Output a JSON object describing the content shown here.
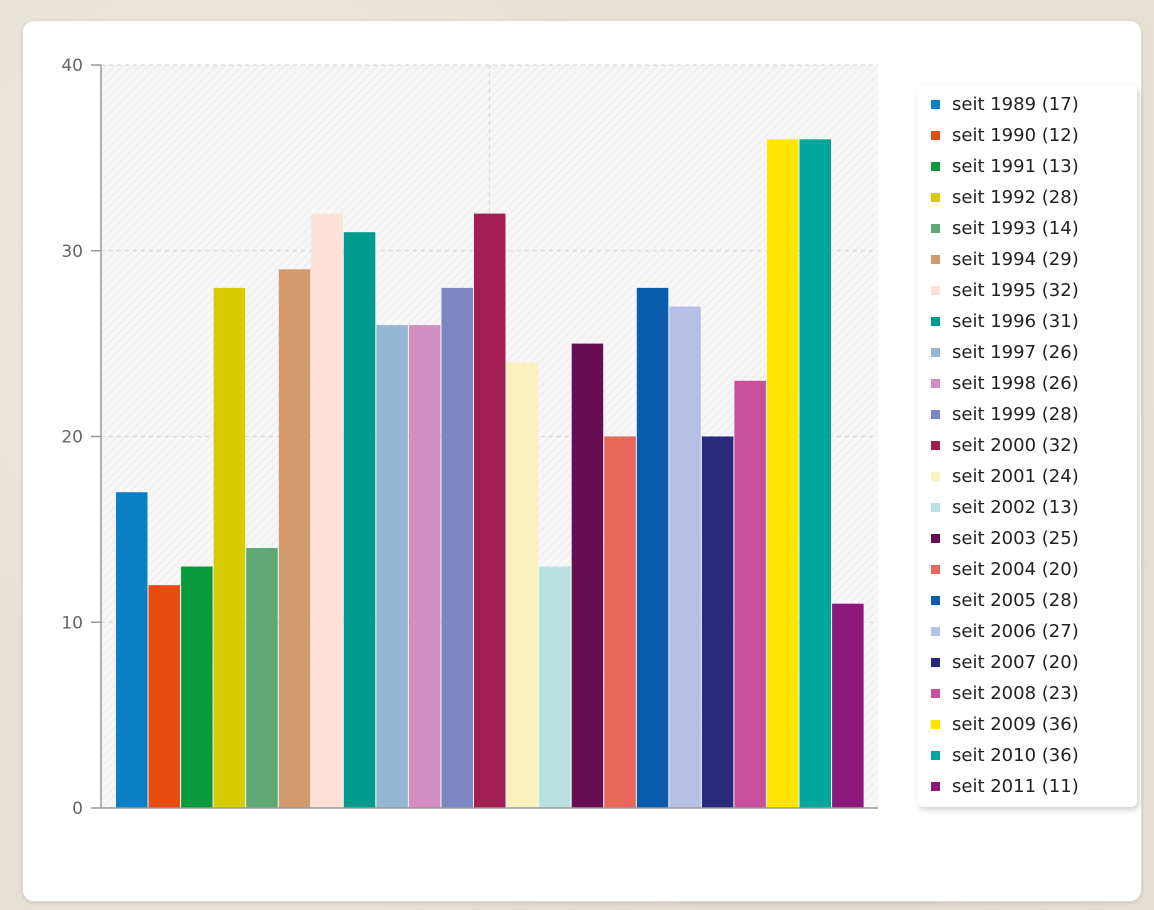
{
  "chart_data": {
    "type": "bar",
    "title": "",
    "xlabel": "",
    "ylabel": "",
    "ylim": [
      0,
      40
    ],
    "yticks": [
      0,
      10,
      20,
      30,
      40
    ],
    "grid": true,
    "legend_position": "right",
    "categories": [
      "seit 1989 (17)",
      "seit 1990 (12)",
      "seit 1991 (13)",
      "seit 1992 (28)",
      "seit 1993 (14)",
      "seit 1994 (29)",
      "seit 1995 (32)",
      "seit 1996 (31)",
      "seit 1997 (26)",
      "seit 1998 (26)",
      "seit 1999 (28)",
      "seit 2000 (32)",
      "seit 2001 (24)",
      "seit 2002 (13)",
      "seit 2003 (25)",
      "seit 2004 (20)",
      "seit 2005 (28)",
      "seit 2006 (27)",
      "seit 2007 (20)",
      "seit 2008 (23)",
      "seit 2009 (36)",
      "seit 2010 (36)",
      "seit 2011 (11)"
    ],
    "values": [
      17,
      12,
      13,
      28,
      14,
      29,
      32,
      31,
      26,
      26,
      28,
      32,
      24,
      13,
      25,
      20,
      28,
      27,
      20,
      23,
      36,
      36,
      11
    ],
    "colors": [
      "#0a7fc6",
      "#e84c10",
      "#0a9a3e",
      "#d8cb00",
      "#5fa873",
      "#d19b6e",
      "#fde0d6",
      "#009a8e",
      "#94b7d6",
      "#d28ec2",
      "#7b86c3",
      "#a21d50",
      "#faf1c0",
      "#b8e1e0",
      "#680d54",
      "#e8675a",
      "#0a5cad",
      "#b6bfe5",
      "#2a2a7d",
      "#c84f9c",
      "#ffe600",
      "#00a79a",
      "#8b187a"
    ]
  }
}
